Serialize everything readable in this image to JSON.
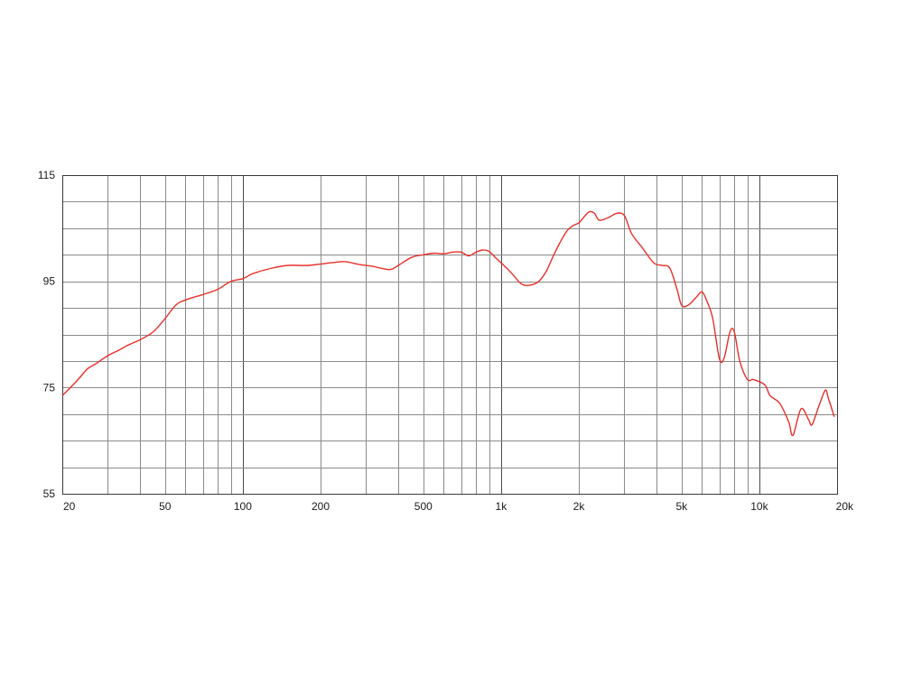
{
  "chart_data": {
    "type": "line",
    "title": "",
    "xlabel": "",
    "ylabel": "",
    "x_scale": "log",
    "xlim": [
      20,
      20000
    ],
    "ylim": [
      55,
      115
    ],
    "grid": true,
    "x_tick_labels": [
      {
        "value": 20,
        "label": "20"
      },
      {
        "value": 50,
        "label": "50"
      },
      {
        "value": 100,
        "label": "100"
      },
      {
        "value": 200,
        "label": "200"
      },
      {
        "value": 500,
        "label": "500"
      },
      {
        "value": 1000,
        "label": "1k"
      },
      {
        "value": 2000,
        "label": "2k"
      },
      {
        "value": 5000,
        "label": "5k"
      },
      {
        "value": 10000,
        "label": "10k"
      },
      {
        "value": 20000,
        "label": "20k"
      }
    ],
    "y_tick_labels": [
      {
        "value": 115,
        "label": "115"
      },
      {
        "value": 95,
        "label": "95"
      },
      {
        "value": 75,
        "label": "75"
      },
      {
        "value": 55,
        "label": "55"
      }
    ],
    "series": [
      {
        "color": "#e8302a",
        "x": [
          20,
          21,
          23,
          25,
          27,
          30,
          33,
          36,
          40,
          45,
          50,
          55,
          60,
          70,
          80,
          90,
          100,
          110,
          130,
          150,
          180,
          220,
          250,
          280,
          320,
          370,
          400,
          450,
          500,
          550,
          600,
          650,
          700,
          750,
          800,
          850,
          900,
          950,
          1000,
          1100,
          1200,
          1300,
          1400,
          1500,
          1600,
          1700,
          1800,
          1900,
          2000,
          2100,
          2200,
          2300,
          2400,
          2600,
          2800,
          3000,
          3200,
          3500,
          3900,
          4200,
          4500,
          4800,
          5000,
          5300,
          5700,
          6000,
          6300,
          6600,
          7000,
          7300,
          7700,
          8000,
          8400,
          9000,
          9500,
          10500,
          11000,
          12000,
          13000,
          13500,
          14500,
          15500,
          16000,
          17000,
          18000,
          18500,
          19500
        ],
        "y": [
          73.5,
          74.5,
          76.5,
          78.5,
          79.5,
          81,
          82,
          83,
          84,
          85.5,
          88,
          90.5,
          91.5,
          92.5,
          93.5,
          95,
          95.5,
          96.5,
          97.5,
          98,
          98,
          98.5,
          98.7,
          98.2,
          97.8,
          97.2,
          98,
          99.5,
          100,
          100.3,
          100.2,
          100.5,
          100.5,
          99.8,
          100.5,
          100.9,
          100.6,
          99.5,
          98.5,
          96.5,
          94.5,
          94.3,
          95,
          97,
          100,
          102.5,
          104.5,
          105.5,
          106,
          107.2,
          108.1,
          107.8,
          106.5,
          107,
          107.8,
          107.4,
          104,
          101.5,
          98.5,
          98,
          97.5,
          93.5,
          90.5,
          90.5,
          92,
          93,
          91,
          88,
          80.5,
          80.5,
          85.5,
          85.5,
          80,
          76.5,
          76.5,
          75.5,
          73.5,
          72,
          68.5,
          66,
          71,
          69,
          68,
          71.5,
          74.5,
          73,
          69.5
        ]
      }
    ]
  }
}
